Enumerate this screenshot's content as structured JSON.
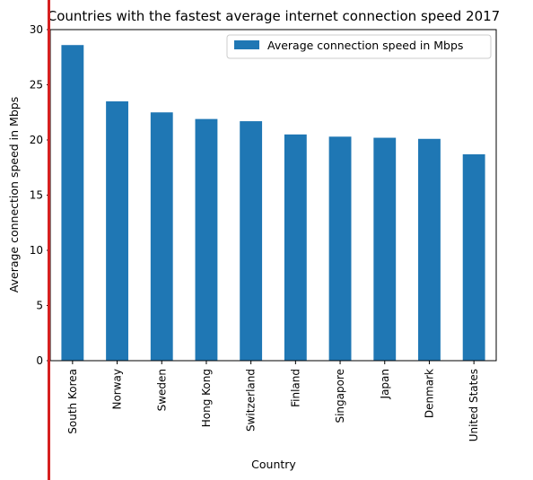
{
  "chart_data": {
    "type": "bar",
    "title": "Countries with the fastest average internet connection speed 2017",
    "xlabel": "Country",
    "ylabel": "Average connection speed in Mbps",
    "categories": [
      "South Korea",
      "Norway",
      "Sweden",
      "Hong Kong",
      "Switzerland",
      "Finland",
      "Singapore",
      "Japan",
      "Denmark",
      "United States"
    ],
    "series": [
      {
        "name": "Average connection speed in Mbps",
        "values": [
          28.6,
          23.5,
          22.5,
          21.9,
          21.7,
          20.5,
          20.3,
          20.2,
          20.1,
          18.7
        ],
        "color": "#1f77b4"
      }
    ],
    "ylim": [
      0,
      30
    ],
    "yticks": [
      "0",
      "5",
      "10",
      "15",
      "20",
      "25",
      "30"
    ],
    "grid": false,
    "legend_position": "top-right"
  },
  "annotation": {
    "marker_color": "#d62020"
  }
}
